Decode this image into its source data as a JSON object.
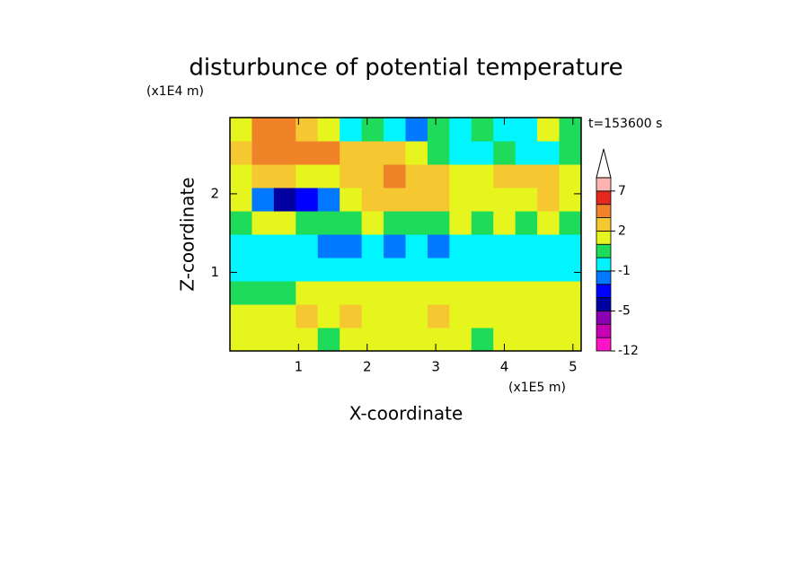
{
  "chart_data": {
    "type": "contour",
    "title": "disturbunce of potential temperature",
    "x_label": "X-coordinate",
    "y_label": "Z-coordinate",
    "x_unit": "(x1E5 m)",
    "y_unit": "(x1E4 m)",
    "time_label": "t=153600 s",
    "xlim": [
      0,
      5.12
    ],
    "ylim": [
      0,
      2.97
    ],
    "xticks": [
      1,
      2,
      3,
      4,
      5
    ],
    "yticks": [
      1,
      2
    ],
    "z": [
      [
        1,
        1.5,
        1,
        1.5,
        0.5,
        1.5,
        1,
        1.5,
        1.5,
        1,
        1,
        0.5,
        1.5,
        1,
        1.5,
        1
      ],
      [
        1.5,
        1.5,
        1.5,
        2,
        1.5,
        2,
        1.5,
        1.5,
        1.5,
        2,
        1.5,
        1.5,
        1.5,
        1.5,
        1.5,
        1.5
      ],
      [
        0.5,
        0.5,
        0.5,
        1,
        1,
        1,
        1.5,
        1.5,
        1.5,
        1,
        1,
        1,
        1.5,
        1.5,
        1.5,
        1.5
      ],
      [
        -0.5,
        -0.5,
        -0.5,
        -0.5,
        -0.5,
        -0.5,
        -0.5,
        -0.5,
        -0.5,
        -0.5,
        -0.5,
        -0.5,
        -0.5,
        -0.5,
        -0.5,
        -0.5
      ],
      [
        -0.5,
        -0.5,
        -0.5,
        -0.5,
        -1.5,
        -2,
        -1,
        -1.5,
        -0.5,
        -2,
        -0.5,
        -0.5,
        -0.5,
        -0.5,
        -0.5,
        -0.5
      ],
      [
        0.5,
        1.5,
        1,
        0.5,
        0.5,
        0.5,
        1,
        0.5,
        0.5,
        0.5,
        1,
        0.5,
        1,
        0.5,
        1.5,
        0.5
      ],
      [
        1.5,
        -2,
        -4,
        -3,
        -1.5,
        1.5,
        2,
        2.5,
        2.5,
        2,
        1.5,
        1.5,
        1.5,
        1.5,
        2,
        1.5
      ],
      [
        1.5,
        2.5,
        2,
        1.5,
        1.5,
        2.5,
        2.5,
        3,
        2.5,
        2,
        1,
        1.5,
        2,
        2.5,
        2.5,
        1.5
      ],
      [
        2.5,
        3,
        4,
        4.5,
        3,
        2,
        2,
        2.5,
        1,
        0.5,
        -0.5,
        -0.5,
        0.5,
        -0.5,
        -0.5,
        0.5
      ],
      [
        1.5,
        4,
        3,
        2,
        1,
        -0.5,
        0.5,
        -0.5,
        -1.5,
        0.5,
        -0.5,
        0.5,
        -0.5,
        -0.5,
        1,
        0.5
      ]
    ],
    "colorbar": {
      "levels": [
        -12,
        -9,
        -7,
        -5,
        -3,
        -2,
        -1,
        0,
        1,
        2,
        3,
        5,
        7,
        9
      ],
      "colors": [
        "#ff14c8",
        "#c800b4",
        "#8c00b4",
        "#0000a0",
        "#0000ff",
        "#0078ff",
        "#00f5ff",
        "#1edc5a",
        "#e6f51e",
        "#f5c832",
        "#f08228",
        "#e6281e",
        "#ffb4b4"
      ],
      "over_color": "#ffffff",
      "ticks": [
        7,
        2,
        -1,
        -5,
        -12
      ]
    }
  }
}
